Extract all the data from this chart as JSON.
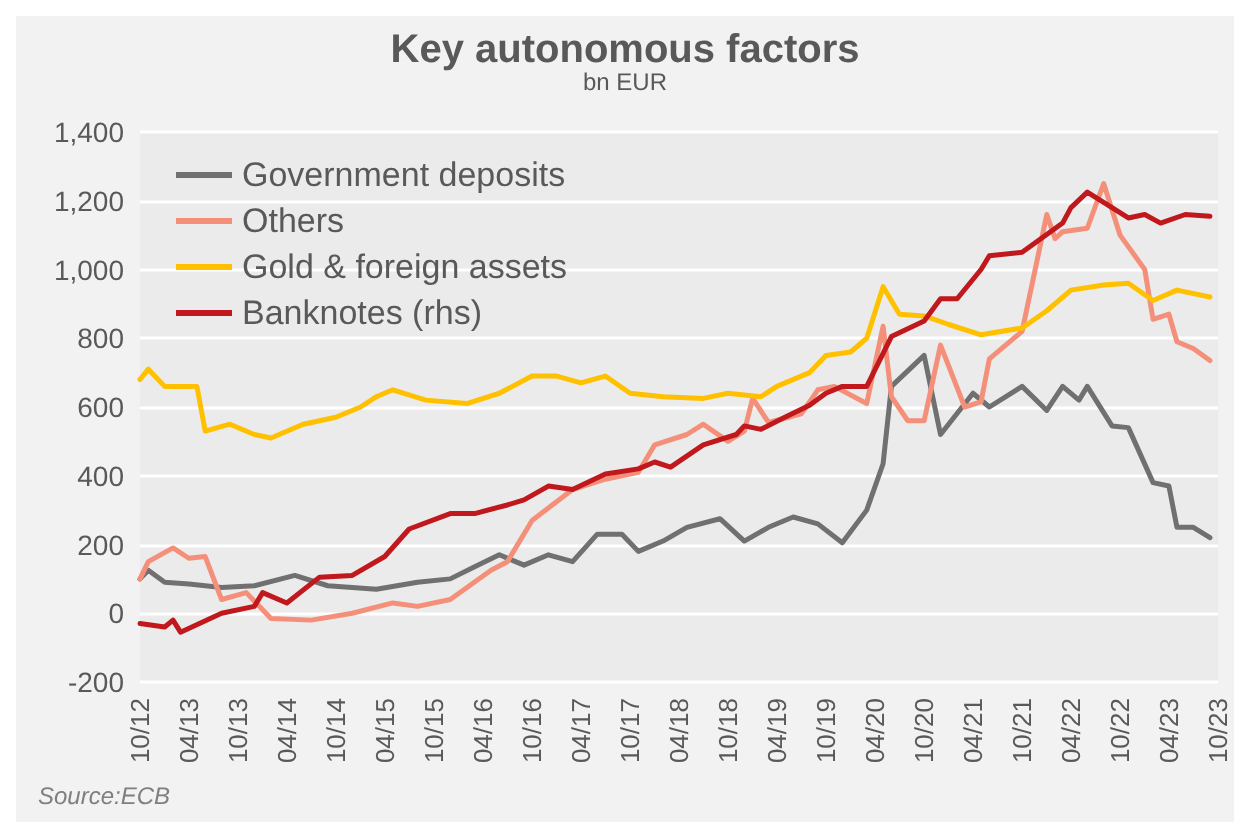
{
  "chart_data": {
    "type": "line",
    "title": "Key autonomous factors",
    "subtitle": "bn EUR",
    "annotations": [
      "Source:ECB"
    ],
    "xlim": [
      "2012-10",
      "2023-10"
    ],
    "xticks": [
      {
        "value": "2012-10",
        "label": "10/12"
      },
      {
        "value": "2013-04",
        "label": "04/13"
      },
      {
        "value": "2013-10",
        "label": "10/13"
      },
      {
        "value": "2014-04",
        "label": "04/14"
      },
      {
        "value": "2014-10",
        "label": "10/14"
      },
      {
        "value": "2015-04",
        "label": "04/15"
      },
      {
        "value": "2015-10",
        "label": "10/15"
      },
      {
        "value": "2016-04",
        "label": "04/16"
      },
      {
        "value": "2016-10",
        "label": "10/16"
      },
      {
        "value": "2017-04",
        "label": "04/17"
      },
      {
        "value": "2017-10",
        "label": "10/17"
      },
      {
        "value": "2018-04",
        "label": "04/18"
      },
      {
        "value": "2018-10",
        "label": "10/18"
      },
      {
        "value": "2019-04",
        "label": "04/19"
      },
      {
        "value": "2019-10",
        "label": "10/19"
      },
      {
        "value": "2020-04",
        "label": "04/20"
      },
      {
        "value": "2020-10",
        "label": "10/20"
      },
      {
        "value": "2021-04",
        "label": "04/21"
      },
      {
        "value": "2021-10",
        "label": "10/21"
      },
      {
        "value": "2022-04",
        "label": "04/22"
      },
      {
        "value": "2022-10",
        "label": "10/22"
      },
      {
        "value": "2023-04",
        "label": "04/23"
      },
      {
        "value": "2023-10",
        "label": "10/23"
      }
    ],
    "ylim": [
      -200,
      1400
    ],
    "yticks": [
      -200,
      0,
      200,
      400,
      600,
      800,
      {
        "value": 1000,
        "label": "1,000"
      },
      {
        "value": 1200,
        "label": "1,200"
      },
      {
        "value": 1400,
        "label": "1,400"
      }
    ],
    "grid": "y",
    "legend": "top left",
    "line_style": "solid",
    "marker": "none",
    "series": [
      {
        "name": "Government deposits",
        "color": "#707070",
        "x": [
          "2012-10",
          "2012-11",
          "2013-01",
          "2013-04",
          "2013-08",
          "2013-12",
          "2014-05",
          "2014-09",
          "2015-03",
          "2015-08",
          "2015-12",
          "2016-03",
          "2016-06",
          "2016-09",
          "2016-12",
          "2017-03",
          "2017-06",
          "2017-09",
          "2017-11",
          "2018-02",
          "2018-05",
          "2018-09",
          "2018-12",
          "2019-03",
          "2019-06",
          "2019-09",
          "2019-12",
          "2020-03",
          "2020-05",
          "2020-06",
          "2020-10",
          "2020-12",
          "2021-04",
          "2021-06",
          "2021-10",
          "2022-01",
          "2022-03",
          "2022-05",
          "2022-06",
          "2022-09",
          "2022-11",
          "2023-02",
          "2023-04",
          "2023-05",
          "2023-07",
          "2023-09"
        ],
        "values": [
          100,
          125,
          90,
          85,
          75,
          80,
          110,
          80,
          70,
          90,
          100,
          135,
          170,
          140,
          170,
          150,
          230,
          230,
          180,
          210,
          250,
          275,
          210,
          250,
          280,
          260,
          205,
          300,
          435,
          660,
          750,
          520,
          640,
          600,
          660,
          590,
          660,
          620,
          660,
          545,
          540,
          380,
          370,
          250,
          250,
          220
        ]
      },
      {
        "name": "Others",
        "color": "#f4907a",
        "x": [
          "2012-10",
          "2012-11",
          "2013-02",
          "2013-04",
          "2013-06",
          "2013-08",
          "2013-11",
          "2014-02",
          "2014-07",
          "2014-12",
          "2015-05",
          "2015-08",
          "2015-12",
          "2016-05",
          "2016-07",
          "2016-10",
          "2017-03",
          "2017-07",
          "2017-11",
          "2018-01",
          "2018-05",
          "2018-07",
          "2018-10",
          "2018-12",
          "2019-01",
          "2019-03",
          "2019-07",
          "2019-09",
          "2019-11",
          "2020-03",
          "2020-05",
          "2020-06",
          "2020-08",
          "2020-10",
          "2020-12",
          "2021-03",
          "2021-05",
          "2021-06",
          "2021-10",
          "2022-01",
          "2022-02",
          "2022-03",
          "2022-06",
          "2022-08",
          "2022-10",
          "2023-01",
          "2023-02",
          "2023-04",
          "2023-05",
          "2023-07",
          "2023-09"
        ],
        "values": [
          100,
          150,
          190,
          160,
          165,
          40,
          60,
          -15,
          -20,
          0,
          30,
          20,
          40,
          125,
          150,
          270,
          360,
          390,
          410,
          490,
          520,
          550,
          500,
          530,
          625,
          555,
          580,
          650,
          660,
          610,
          835,
          630,
          560,
          560,
          780,
          600,
          615,
          740,
          820,
          1160,
          1090,
          1110,
          1120,
          1250,
          1100,
          1000,
          855,
          870,
          790,
          770,
          735
        ]
      },
      {
        "name": "Gold & foreign assets",
        "color": "#ffc000",
        "x": [
          "2012-10",
          "2012-11",
          "2013-01",
          "2013-05",
          "2013-06",
          "2013-09",
          "2013-12",
          "2014-02",
          "2014-06",
          "2014-10",
          "2015-01",
          "2015-03",
          "2015-05",
          "2015-09",
          "2016-02",
          "2016-06",
          "2016-10",
          "2017-01",
          "2017-04",
          "2017-07",
          "2017-10",
          "2018-02",
          "2018-07",
          "2018-10",
          "2019-02",
          "2019-04",
          "2019-08",
          "2019-10",
          "2020-01",
          "2020-03",
          "2020-05",
          "2020-07",
          "2020-10",
          "2021-01",
          "2021-05",
          "2021-10",
          "2022-01",
          "2022-04",
          "2022-08",
          "2022-11",
          "2023-02",
          "2023-05",
          "2023-09"
        ],
        "values": [
          680,
          710,
          660,
          660,
          530,
          550,
          520,
          510,
          550,
          570,
          600,
          630,
          650,
          620,
          610,
          640,
          690,
          690,
          670,
          690,
          640,
          630,
          625,
          640,
          630,
          660,
          700,
          750,
          760,
          800,
          950,
          870,
          865,
          840,
          810,
          830,
          880,
          940,
          955,
          960,
          910,
          940,
          920
        ]
      },
      {
        "name": "Banknotes (rhs)",
        "color": "#c0181c",
        "x": [
          "2012-10",
          "2013-01",
          "2013-02",
          "2013-03",
          "2013-08",
          "2013-12",
          "2014-01",
          "2014-04",
          "2014-08",
          "2014-12",
          "2015-04",
          "2015-07",
          "2015-12",
          "2016-03",
          "2016-07",
          "2016-09",
          "2016-12",
          "2017-03",
          "2017-07",
          "2017-11",
          "2018-01",
          "2018-03",
          "2018-07",
          "2018-11",
          "2018-12",
          "2019-02",
          "2019-05",
          "2019-08",
          "2019-10",
          "2019-12",
          "2020-03",
          "2020-06",
          "2020-10",
          "2020-12",
          "2021-02",
          "2021-05",
          "2021-06",
          "2021-10",
          "2022-03",
          "2022-04",
          "2022-06",
          "2022-11",
          "2023-01",
          "2023-03",
          "2023-06",
          "2023-09"
        ],
        "values": [
          -30,
          -40,
          -20,
          -55,
          0,
          20,
          60,
          30,
          105,
          110,
          165,
          245,
          290,
          290,
          315,
          330,
          370,
          360,
          405,
          420,
          440,
          425,
          490,
          520,
          545,
          535,
          570,
          605,
          640,
          660,
          660,
          805,
          850,
          915,
          915,
          1000,
          1040,
          1050,
          1135,
          1180,
          1225,
          1150,
          1160,
          1135,
          1160,
          1155
        ]
      }
    ]
  }
}
